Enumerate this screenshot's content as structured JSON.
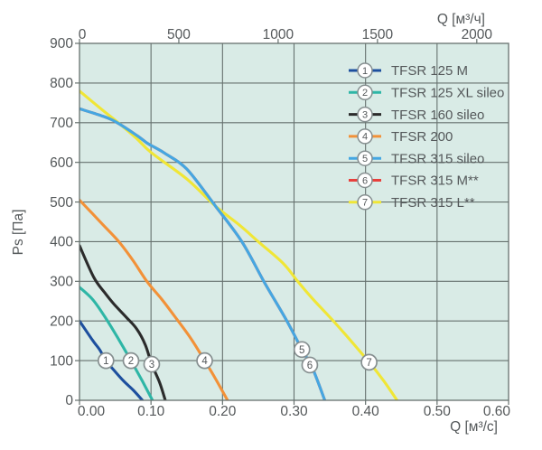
{
  "colors": {
    "page_bg": "#ffffff",
    "plot_bg": "#d9ebe6",
    "grid": "#66716e",
    "axis_text": "#54585a",
    "marker_fill": "#ffffff",
    "marker_stroke": "#868f90",
    "marker_text": "#54585a"
  },
  "axes": {
    "y": {
      "label": "Ps [Па]",
      "ticks": [
        "0",
        "100",
        "200",
        "300",
        "400",
        "500",
        "600",
        "700",
        "800",
        "900"
      ],
      "min": 0,
      "max": 900
    },
    "x_bottom": {
      "label": "Q [м³/с]",
      "ticks": [
        "0.00",
        "0.10",
        "0.20",
        "0.30",
        "0.40",
        "0.50",
        "0.60"
      ],
      "min": 0,
      "max": 0.6
    },
    "x_top": {
      "label": "Q [м³/ч]",
      "ticks": [
        "0",
        "500",
        "1000",
        "1500",
        "2000"
      ],
      "scale_to_bottom": 3600
    }
  },
  "chart_data": {
    "type": "line",
    "title": "",
    "xlabel": "Q [м³/с]",
    "x2label": "Q [м³/ч]",
    "ylabel": "Ps [Па]",
    "xlim": [
      0,
      0.6
    ],
    "ylim": [
      0,
      900
    ],
    "grid": true,
    "legend_position": "top-right-inside",
    "series": [
      {
        "number": "1",
        "name": "TFSR 125 M",
        "color": "#1d4f9e",
        "marker_at": [
          0.037,
          100
        ],
        "points": [
          [
            0,
            200
          ],
          [
            0.018,
            152
          ],
          [
            0.028,
            128
          ],
          [
            0.037,
            100
          ],
          [
            0.05,
            72
          ],
          [
            0.062,
            48
          ],
          [
            0.075,
            26
          ],
          [
            0.088,
            0
          ]
        ]
      },
      {
        "number": "2",
        "name": "TFSR 125 XL sileo",
        "color": "#2eb6a6",
        "marker_at": [
          0.072,
          100
        ],
        "points": [
          [
            0,
            285
          ],
          [
            0.018,
            255
          ],
          [
            0.035,
            212
          ],
          [
            0.053,
            159
          ],
          [
            0.072,
            100
          ],
          [
            0.088,
            48
          ],
          [
            0.102,
            0
          ]
        ]
      },
      {
        "number": "3",
        "name": "TFSR 160 sileo",
        "color": "#2b2b2b",
        "marker_at": [
          0.101,
          91
        ],
        "points": [
          [
            0,
            390
          ],
          [
            0.02,
            310
          ],
          [
            0.035,
            272
          ],
          [
            0.048,
            243
          ],
          [
            0.065,
            210
          ],
          [
            0.08,
            180
          ],
          [
            0.092,
            140
          ],
          [
            0.101,
            91
          ],
          [
            0.112,
            45
          ],
          [
            0.12,
            0
          ]
        ]
      },
      {
        "number": "4",
        "name": "TFSR 200",
        "color": "#f29138",
        "marker_at": [
          0.175,
          100
        ],
        "points": [
          [
            0,
            505
          ],
          [
            0.03,
            448
          ],
          [
            0.055,
            400
          ],
          [
            0.075,
            352
          ],
          [
            0.095,
            298
          ],
          [
            0.115,
            255
          ],
          [
            0.133,
            212
          ],
          [
            0.155,
            158
          ],
          [
            0.175,
            100
          ],
          [
            0.19,
            55
          ],
          [
            0.207,
            0
          ]
        ]
      },
      {
        "number": "5",
        "name": "TFSR 315 sileo",
        "color": "#45a7e2",
        "marker_at": [
          0.311,
          128
        ],
        "points": [
          [
            0,
            735
          ],
          [
            0.03,
            718
          ],
          [
            0.05,
            703
          ],
          [
            0.08,
            668
          ],
          [
            0.095,
            648
          ],
          [
            0.105,
            638
          ],
          [
            0.12,
            622
          ],
          [
            0.15,
            583
          ],
          [
            0.19,
            490
          ],
          [
            0.227,
            400
          ],
          [
            0.259,
            296
          ],
          [
            0.29,
            200
          ],
          [
            0.311,
            128
          ],
          [
            0.326,
            80
          ],
          [
            0.343,
            0
          ]
        ]
      },
      {
        "number": "6",
        "name": "TFSR 315 M**",
        "color": "#e8403c",
        "marker_at": [
          0.322,
          89
        ],
        "points": [
          [
            0,
            735
          ],
          [
            0.03,
            718
          ],
          [
            0.05,
            703
          ],
          [
            0.08,
            668
          ],
          [
            0.095,
            648
          ],
          [
            0.105,
            638
          ],
          [
            0.12,
            622
          ],
          [
            0.15,
            583
          ],
          [
            0.19,
            490
          ],
          [
            0.227,
            400
          ],
          [
            0.259,
            296
          ],
          [
            0.29,
            200
          ],
          [
            0.311,
            128
          ],
          [
            0.326,
            80
          ],
          [
            0.343,
            0
          ]
        ]
      },
      {
        "number": "7",
        "name": "TFSR 315 L**",
        "color": "#f0e636",
        "marker_at": [
          0.405,
          96
        ],
        "points": [
          [
            0,
            780
          ],
          [
            0.03,
            735
          ],
          [
            0.05,
            706
          ],
          [
            0.08,
            660
          ],
          [
            0.1,
            625
          ],
          [
            0.15,
            558
          ],
          [
            0.19,
            490
          ],
          [
            0.225,
            440
          ],
          [
            0.25,
            400
          ],
          [
            0.285,
            345
          ],
          [
            0.305,
            300
          ],
          [
            0.325,
            258
          ],
          [
            0.36,
            190
          ],
          [
            0.405,
            96
          ],
          [
            0.425,
            50
          ],
          [
            0.444,
            0
          ]
        ]
      }
    ]
  }
}
